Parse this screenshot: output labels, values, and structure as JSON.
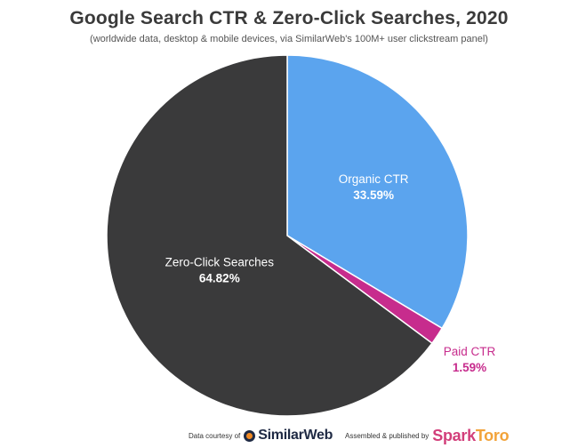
{
  "header": {
    "title": "Google Search CTR & Zero-Click Searches, 2020",
    "subtitle": "(worldwide data, desktop & mobile devices, via SimilarWeb's 100M+ user clickstream panel)"
  },
  "chart_data": {
    "type": "pie",
    "title": "Google Search CTR & Zero-Click Searches, 2020",
    "subtitle": "(worldwide data, desktop & mobile devices, via SimilarWeb's 100M+ user clickstream panel)",
    "start": "12 o'clock",
    "direction": "clockwise",
    "slices": [
      {
        "label": "Organic CTR",
        "value": 33.59,
        "value_label": "33.59%",
        "color": "#5ba4ee",
        "label_color": "#ffffff",
        "label_placement": "inside"
      },
      {
        "label": "Paid CTR",
        "value": 1.59,
        "value_label": "1.59%",
        "color": "#c72c8d",
        "label_color": "#c72c8d",
        "label_placement": "outside"
      },
      {
        "label": "Zero-Click Searches",
        "value": 64.82,
        "value_label": "64.82%",
        "color": "#3a3a3b",
        "label_color": "#ffffff",
        "label_placement": "inside"
      }
    ]
  },
  "footer": {
    "data_credit": "Data courtesy of",
    "similarweb_logo": "SimilarWeb",
    "assembled_credit": "Assembled & published by",
    "sparktoro_spark": "Spark",
    "sparktoro_toro": "Toro"
  }
}
